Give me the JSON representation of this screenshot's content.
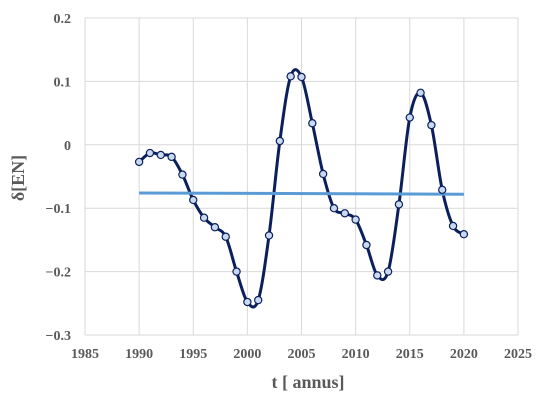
{
  "chart_data": {
    "type": "scatter",
    "title": "",
    "xlabel": "t [ annus]",
    "ylabel": "δ[EN]",
    "xlim": [
      1985,
      2025
    ],
    "ylim": [
      -0.3,
      0.2
    ],
    "x_ticks": [
      1985,
      1990,
      1995,
      2000,
      2005,
      2010,
      2015,
      2020,
      2025
    ],
    "y_ticks": [
      -0.3,
      -0.2,
      -0.1,
      0,
      0.1,
      0.2
    ],
    "x_tick_labels": [
      "1985",
      "1990",
      "1995",
      "2000",
      "2005",
      "2010",
      "2015",
      "2020",
      "2025"
    ],
    "y_tick_labels": [
      "−0.3",
      "−0.2",
      "−0.1",
      "0",
      "0.1",
      "0.2"
    ],
    "grid": true,
    "legend": "none",
    "series": [
      {
        "style": "smooth-line-with-markers",
        "color": "#0b1f5c",
        "marker_fill": "#c9d9f0",
        "x": [
          1990,
          1991,
          1992,
          1993,
          1994,
          1995,
          1996,
          1997,
          1998,
          1999,
          2000,
          2001,
          2002,
          2003,
          2004,
          2005,
          2006,
          2007,
          2008,
          2009,
          2010,
          2011,
          2012,
          2013,
          2014,
          2015,
          2016,
          2017,
          2018,
          2019,
          2020
        ],
        "y": [
          -0.027,
          -0.013,
          -0.016,
          -0.019,
          -0.047,
          -0.087,
          -0.115,
          -0.13,
          -0.145,
          -0.2,
          -0.248,
          -0.245,
          -0.143,
          0.006,
          0.108,
          0.107,
          0.034,
          -0.046,
          -0.1,
          -0.108,
          -0.118,
          -0.158,
          -0.206,
          -0.2,
          -0.094,
          0.043,
          0.082,
          0.031,
          -0.071,
          -0.128,
          -0.141
        ]
      },
      {
        "style": "line",
        "color": "#5b9bd5",
        "x": [
          1990,
          2020
        ],
        "y": [
          -0.076,
          -0.078
        ]
      }
    ]
  }
}
